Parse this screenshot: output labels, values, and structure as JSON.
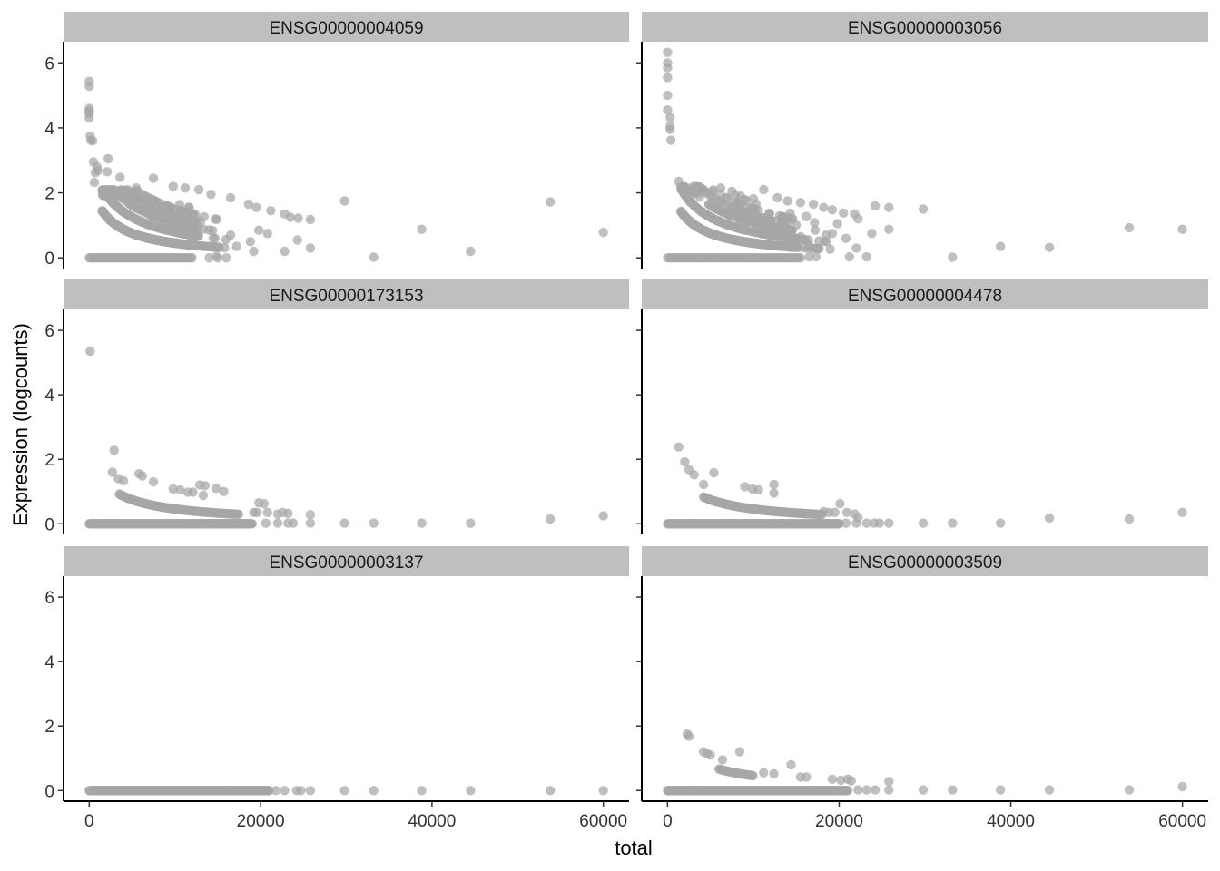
{
  "chart_data": {
    "type": "scatter",
    "title": "",
    "xlabel": "total",
    "ylabel": "Expression (logcounts)",
    "xlim": [
      -3000,
      63000
    ],
    "ylim": [
      -0.33,
      6.65
    ],
    "x_ticks": [
      0,
      20000,
      40000,
      60000
    ],
    "y_ticks": [
      0,
      2,
      4,
      6
    ],
    "grid": false,
    "legend": "none",
    "point_color": "#A6A6A6",
    "strip_color": "#BFBFBF",
    "panels": [
      {
        "name": "ENSG00000004059",
        "dense_band": {
          "x_min": 0,
          "x_max": 12500,
          "y_min": 0,
          "y_max": 2.1,
          "count": 900
        },
        "zero_band": {
          "x_min": 0,
          "x_max": 12000,
          "count": 70
        },
        "points": [
          [
            0,
            5.43
          ],
          [
            0,
            5.28
          ],
          [
            0,
            4.6
          ],
          [
            0,
            4.52
          ],
          [
            0,
            4.45
          ],
          [
            0,
            4.3
          ],
          [
            100,
            3.75
          ],
          [
            200,
            3.62
          ],
          [
            400,
            3.6
          ],
          [
            500,
            2.95
          ],
          [
            900,
            2.8
          ],
          [
            700,
            2.62
          ],
          [
            1000,
            2.68
          ],
          [
            600,
            2.32
          ],
          [
            2200,
            3.05
          ],
          [
            2100,
            2.65
          ],
          [
            3600,
            2.48
          ],
          [
            5500,
            2.15
          ],
          [
            7500,
            2.45
          ],
          [
            9800,
            2.2
          ],
          [
            11200,
            2.15
          ],
          [
            12800,
            2.1
          ],
          [
            14200,
            1.95
          ],
          [
            16500,
            1.85
          ],
          [
            18600,
            1.65
          ],
          [
            19500,
            1.55
          ],
          [
            21200,
            1.45
          ],
          [
            22800,
            1.35
          ],
          [
            23500,
            1.25
          ],
          [
            24400,
            1.22
          ],
          [
            25800,
            1.18
          ],
          [
            19800,
            0.85
          ],
          [
            20800,
            0.75
          ],
          [
            19200,
            0.2
          ],
          [
            18800,
            0.5
          ],
          [
            17200,
            0.35
          ],
          [
            16500,
            0.7
          ],
          [
            14800,
            0.05
          ],
          [
            22800,
            0.2
          ],
          [
            24300,
            0.55
          ],
          [
            25800,
            0.3
          ],
          [
            29800,
            1.75
          ],
          [
            33200,
            0.02
          ],
          [
            38800,
            0.88
          ],
          [
            44500,
            0.2
          ],
          [
            53800,
            1.72
          ],
          [
            60000,
            0.78
          ],
          [
            14000,
            0.0
          ],
          [
            15000,
            0.0
          ],
          [
            16000,
            0.0
          ]
        ]
      },
      {
        "name": "ENSG00000003056",
        "dense_band": {
          "x_min": 0,
          "x_max": 15000,
          "y_min": 0,
          "y_max": 2.2,
          "count": 620
        },
        "zero_band": {
          "x_min": 0,
          "x_max": 15500,
          "count": 75
        },
        "points": [
          [
            0,
            6.32
          ],
          [
            0,
            6.0
          ],
          [
            0,
            5.85
          ],
          [
            0,
            5.55
          ],
          [
            0,
            5.0
          ],
          [
            0,
            4.55
          ],
          [
            300,
            4.32
          ],
          [
            300,
            4.05
          ],
          [
            300,
            3.95
          ],
          [
            400,
            3.62
          ],
          [
            1300,
            2.35
          ],
          [
            2500,
            1.78
          ],
          [
            3100,
            2.2
          ],
          [
            4200,
            2.1
          ],
          [
            5200,
            2.05
          ],
          [
            6200,
            2.15
          ],
          [
            7500,
            2.05
          ],
          [
            8500,
            1.9
          ],
          [
            10000,
            1.82
          ],
          [
            11200,
            2.1
          ],
          [
            12800,
            1.85
          ],
          [
            14000,
            1.75
          ],
          [
            15500,
            1.7
          ],
          [
            17000,
            1.65
          ],
          [
            18200,
            1.55
          ],
          [
            19200,
            1.48
          ],
          [
            20500,
            1.38
          ],
          [
            21800,
            1.35
          ],
          [
            22200,
            1.2
          ],
          [
            19800,
            1.05
          ],
          [
            17200,
            0.85
          ],
          [
            15500,
            0.65
          ],
          [
            16500,
            0.38
          ],
          [
            19200,
            0.75
          ],
          [
            20800,
            0.6
          ],
          [
            22000,
            0.3
          ],
          [
            23800,
            0.75
          ],
          [
            24200,
            1.6
          ],
          [
            25800,
            1.55
          ],
          [
            25800,
            0.88
          ],
          [
            21200,
            0.03
          ],
          [
            23200,
            0.03
          ],
          [
            16500,
            0.03
          ],
          [
            17300,
            0.03
          ],
          [
            29800,
            1.5
          ],
          [
            33200,
            0.02
          ],
          [
            38800,
            0.35
          ],
          [
            44500,
            0.32
          ],
          [
            53800,
            0.93
          ],
          [
            60000,
            0.88
          ]
        ]
      },
      {
        "name": "ENSG00000173153",
        "dense_band": {
          "x_min": 0,
          "x_max": 0,
          "y_min": 0,
          "y_max": 0,
          "count": 0
        },
        "zero_band": {
          "x_min": 0,
          "x_max": 19000,
          "count": 300
        },
        "points": [
          [
            100,
            5.35
          ],
          [
            2900,
            2.28
          ],
          [
            2700,
            1.6
          ],
          [
            3400,
            1.4
          ],
          [
            4000,
            1.33
          ],
          [
            5800,
            1.55
          ],
          [
            6200,
            1.48
          ],
          [
            7500,
            1.3
          ],
          [
            9800,
            1.08
          ],
          [
            10600,
            1.05
          ],
          [
            11500,
            0.98
          ],
          [
            12100,
            0.98
          ],
          [
            12900,
            1.2
          ],
          [
            13500,
            1.18
          ],
          [
            13300,
            0.88
          ],
          [
            14800,
            1.1
          ],
          [
            15700,
            1.0
          ],
          [
            19800,
            0.65
          ],
          [
            20400,
            0.62
          ],
          [
            19200,
            0.35
          ],
          [
            19600,
            0.35
          ],
          [
            20800,
            0.35
          ],
          [
            22000,
            0.3
          ],
          [
            22600,
            0.35
          ],
          [
            23200,
            0.32
          ],
          [
            25800,
            0.28
          ],
          [
            20600,
            0.02
          ],
          [
            22000,
            0.02
          ],
          [
            23200,
            0.02
          ],
          [
            23800,
            0.02
          ],
          [
            25800,
            0.02
          ],
          [
            29800,
            0.02
          ],
          [
            33200,
            0.02
          ],
          [
            38800,
            0.02
          ],
          [
            44500,
            0.02
          ],
          [
            53800,
            0.15
          ],
          [
            60000,
            0.25
          ]
        ]
      },
      {
        "name": "ENSG00000004478",
        "dense_band": {
          "x_min": 0,
          "x_max": 0,
          "y_min": 0,
          "y_max": 0,
          "count": 0
        },
        "zero_band": {
          "x_min": 0,
          "x_max": 20000,
          "count": 300
        },
        "points": [
          [
            1300,
            2.38
          ],
          [
            2000,
            1.92
          ],
          [
            2500,
            1.68
          ],
          [
            3100,
            1.52
          ],
          [
            5400,
            1.58
          ],
          [
            4200,
            1.22
          ],
          [
            9000,
            1.15
          ],
          [
            9900,
            1.08
          ],
          [
            10600,
            1.05
          ],
          [
            12400,
            1.22
          ],
          [
            12400,
            0.95
          ],
          [
            18200,
            0.38
          ],
          [
            18800,
            0.35
          ],
          [
            19500,
            0.35
          ],
          [
            20100,
            0.62
          ],
          [
            20900,
            0.35
          ],
          [
            21800,
            0.3
          ],
          [
            22200,
            0.2
          ],
          [
            20800,
            0.02
          ],
          [
            22000,
            0.02
          ],
          [
            23200,
            0.02
          ],
          [
            24100,
            0.02
          ],
          [
            24700,
            0.02
          ],
          [
            25800,
            0.02
          ],
          [
            29800,
            0.02
          ],
          [
            33200,
            0.02
          ],
          [
            38800,
            0.02
          ],
          [
            44500,
            0.18
          ],
          [
            53800,
            0.15
          ],
          [
            60000,
            0.35
          ]
        ]
      },
      {
        "name": "ENSG00000003137",
        "dense_band": {
          "x_min": 0,
          "x_max": 0,
          "y_min": 0,
          "y_max": 0,
          "count": 0
        },
        "zero_band": {
          "x_min": 0,
          "x_max": 21000,
          "count": 330
        },
        "points": [
          [
            21800,
            0.0
          ],
          [
            22800,
            0.0
          ],
          [
            24200,
            0.0
          ],
          [
            24700,
            0.0
          ],
          [
            25800,
            0.0
          ],
          [
            29800,
            0.0
          ],
          [
            33200,
            0.0
          ],
          [
            38800,
            0.0
          ],
          [
            44500,
            0.0
          ],
          [
            53800,
            0.0
          ],
          [
            60000,
            0.0
          ]
        ]
      },
      {
        "name": "ENSG00000003509",
        "dense_band": {
          "x_min": 0,
          "x_max": 0,
          "y_min": 0,
          "y_max": 0,
          "count": 0
        },
        "zero_band": {
          "x_min": 0,
          "x_max": 21000,
          "count": 330
        },
        "points": [
          [
            2300,
            1.75
          ],
          [
            2500,
            1.68
          ],
          [
            4200,
            1.2
          ],
          [
            4600,
            1.15
          ],
          [
            5000,
            1.1
          ],
          [
            8400,
            1.2
          ],
          [
            6400,
            0.95
          ],
          [
            11200,
            0.55
          ],
          [
            12400,
            0.52
          ],
          [
            14400,
            0.8
          ],
          [
            15500,
            0.42
          ],
          [
            16200,
            0.42
          ],
          [
            19200,
            0.35
          ],
          [
            20200,
            0.32
          ],
          [
            21000,
            0.35
          ],
          [
            21400,
            0.3
          ],
          [
            25800,
            0.28
          ],
          [
            22200,
            0.02
          ],
          [
            23200,
            0.02
          ],
          [
            24200,
            0.02
          ],
          [
            25800,
            0.02
          ],
          [
            29800,
            0.02
          ],
          [
            33200,
            0.02
          ],
          [
            38800,
            0.02
          ],
          [
            44500,
            0.02
          ],
          [
            53800,
            0.02
          ],
          [
            60000,
            0.12
          ]
        ]
      }
    ]
  }
}
